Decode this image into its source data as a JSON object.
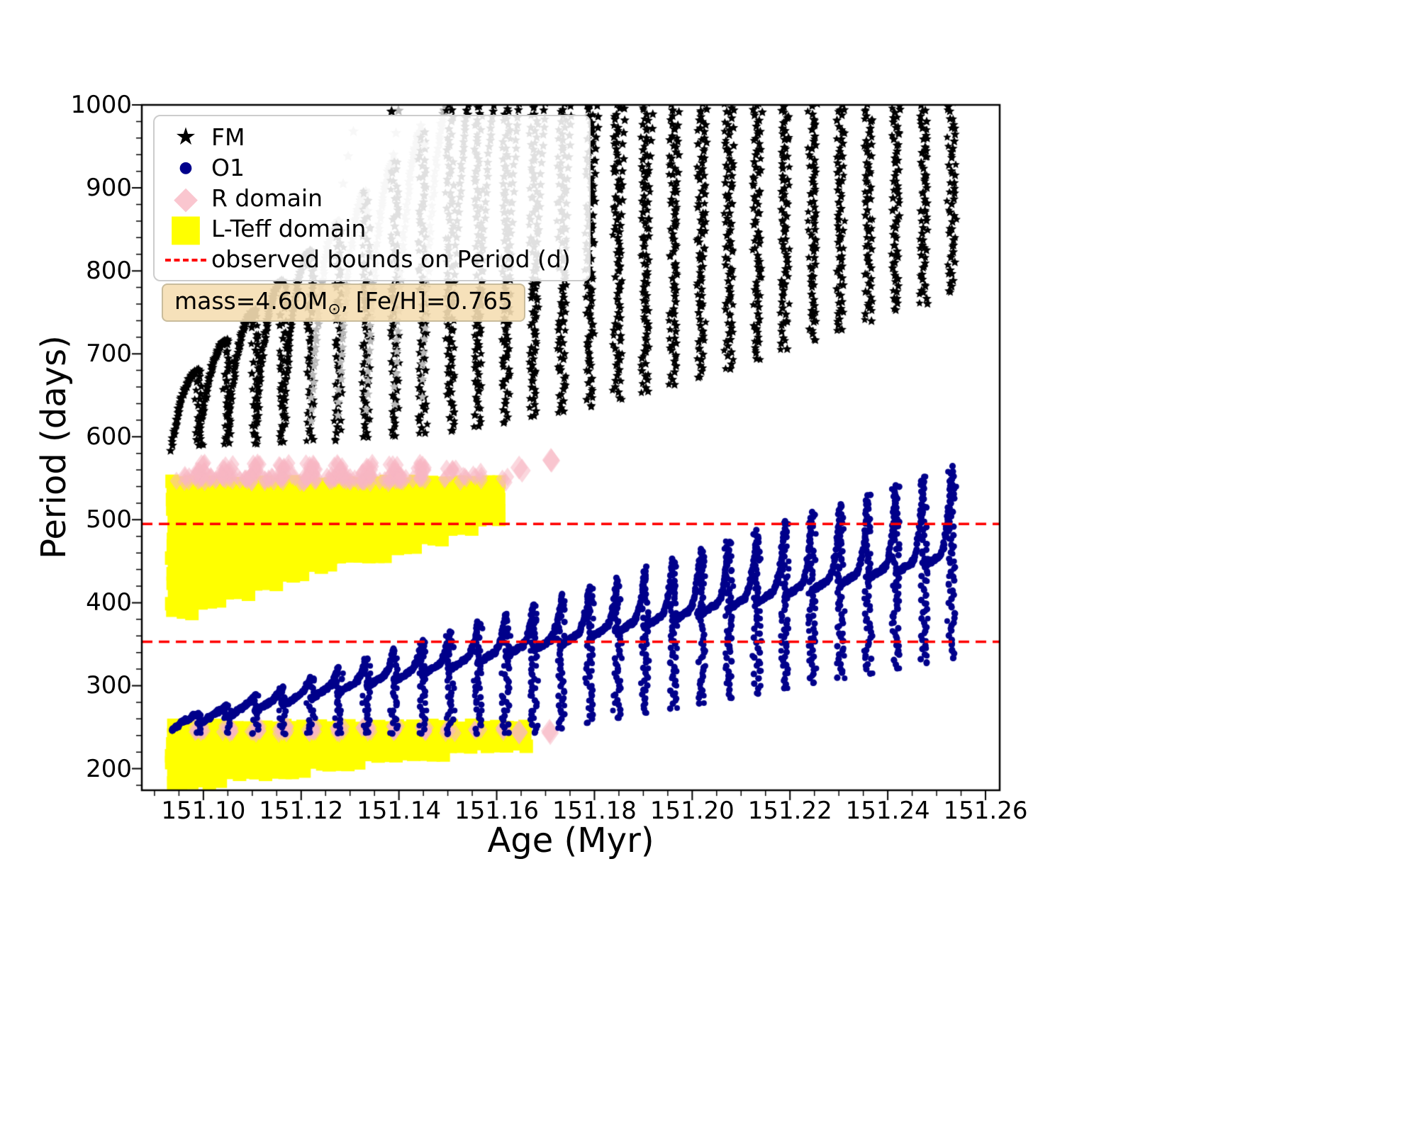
{
  "chart_data": {
    "type": "scatter",
    "title": "",
    "xlabel": "Age (Myr)",
    "ylabel": "Period (days)",
    "x_range": [
      151.0874,
      151.2629
    ],
    "y_range": [
      174,
      1000
    ],
    "x_minor_step": 0.005,
    "y_minor_step": 20,
    "x_ticks": [
      {
        "v": 151.1,
        "label": "151.10"
      },
      {
        "v": 151.12,
        "label": "151.12"
      },
      {
        "v": 151.14,
        "label": "151.14"
      },
      {
        "v": 151.16,
        "label": "151.16"
      },
      {
        "v": 151.18,
        "label": "151.18"
      },
      {
        "v": 151.2,
        "label": "151.20"
      },
      {
        "v": 151.22,
        "label": "151.22"
      },
      {
        "v": 151.24,
        "label": "151.24"
      },
      {
        "v": 151.26,
        "label": "151.26"
      }
    ],
    "y_ticks": [
      {
        "v": 200,
        "label": "200"
      },
      {
        "v": 300,
        "label": "300"
      },
      {
        "v": 400,
        "label": "400"
      },
      {
        "v": 500,
        "label": "500"
      },
      {
        "v": 600,
        "label": "600"
      },
      {
        "v": 700,
        "label": "700"
      },
      {
        "v": 800,
        "label": "800"
      },
      {
        "v": 900,
        "label": "900"
      },
      {
        "v": 1000,
        "label": "1000"
      }
    ],
    "red_lines": [
      495,
      353
    ],
    "annotation": {
      "pre": "mass=4.60M",
      "sub": "⊙",
      "post": ", [Fe/H]=0.765"
    },
    "legend": [
      {
        "icon": "star-icon",
        "glyph": "★",
        "label": "FM",
        "color": "#000000",
        "size": 34
      },
      {
        "icon": "dot-icon",
        "glyph": "●",
        "label": "O1",
        "color": "#00008b",
        "size": 22
      },
      {
        "icon": "diamond-icon",
        "glyph": "◆",
        "label": "R domain",
        "color": "#f8b7c3",
        "size": 44,
        "alpha": 0.8
      },
      {
        "icon": "square-icon",
        "glyph": "■",
        "label": "L-Teff domain",
        "color": "#ffff00",
        "size": 52
      },
      {
        "icon": "dashed-line-icon",
        "glyph": "dash",
        "label": "observed bounds on Period (d)",
        "color": "#ff0000"
      }
    ],
    "colors": {
      "fm": "#000000",
      "fm_faded": "#b9b9b9",
      "o1": "#00008b",
      "r_domain": "#f8b7c3",
      "l_teff": "#ffff00",
      "bounds": "#ff0000"
    },
    "fm_series": {
      "name": "FM",
      "marker": "star",
      "dx": 0.0057,
      "arches": [
        {
          "x0": 151.0935,
          "b": 583,
          "p": 680,
          "d": 590
        },
        {
          "x0": 151.0992,
          "b": 590,
          "p": 716,
          "d": 591
        },
        {
          "x0": 151.1049,
          "b": 597,
          "p": 752,
          "d": 591
        },
        {
          "x0": 151.1106,
          "b": 603,
          "p": 788,
          "d": 593
        },
        {
          "x0": 151.1163,
          "b": 610,
          "p": 824,
          "d": 595
        },
        {
          "x0": 151.122,
          "b": 617,
          "p": 860,
          "d": 597,
          "f": 1
        },
        {
          "x0": 151.1277,
          "b": 624,
          "p": 896,
          "d": 599,
          "f": 1
        },
        {
          "x0": 151.1334,
          "b": 631,
          "p": 932,
          "d": 601,
          "f": 1
        },
        {
          "x0": 151.1391,
          "b": 637,
          "p": 968,
          "d": 604,
          "f": 1
        },
        {
          "x0": 151.1448,
          "b": 644,
          "p": 1004,
          "d": 608,
          "f": 1
        },
        {
          "x0": 151.1505,
          "b": 651,
          "p": 1040,
          "d": 612
        },
        {
          "x0": 151.1562,
          "b": 658,
          "p": 1076,
          "d": 618
        },
        {
          "x0": 151.1619,
          "b": 665,
          "p": 1112,
          "d": 624
        },
        {
          "x0": 151.1676,
          "b": 672,
          "p": 1148,
          "d": 629
        },
        {
          "x0": 151.1733,
          "b": 678,
          "p": 1184,
          "d": 636
        },
        {
          "x0": 151.179,
          "b": 685,
          "p": 1220,
          "d": 645
        },
        {
          "x0": 151.1847,
          "b": 692,
          "p": 1256,
          "d": 653
        },
        {
          "x0": 151.1904,
          "b": 699,
          "p": 1292,
          "d": 663
        },
        {
          "x0": 151.1961,
          "b": 706,
          "p": 1328,
          "d": 672
        },
        {
          "x0": 151.2018,
          "b": 712,
          "p": 1364,
          "d": 682
        },
        {
          "x0": 151.2075,
          "b": 719,
          "p": 1400,
          "d": 693
        },
        {
          "x0": 151.2132,
          "b": 726,
          "p": 1436,
          "d": 705
        },
        {
          "x0": 151.2189,
          "b": 733,
          "p": 1472,
          "d": 717
        },
        {
          "x0": 151.2246,
          "b": 740,
          "p": 1508,
          "d": 728
        },
        {
          "x0": 151.2303,
          "b": 746,
          "p": 1544,
          "d": 741
        },
        {
          "x0": 151.236,
          "b": 753,
          "p": 1580,
          "d": 754
        },
        {
          "x0": 151.2417,
          "b": 760,
          "p": 1616,
          "d": 761
        },
        {
          "x0": 151.2474,
          "b": 767,
          "p": 1652,
          "d": 774
        }
      ]
    },
    "o1_series": {
      "name": "O1",
      "marker": "dot",
      "dx": 0.0057,
      "grad": 22,
      "arches": [
        {
          "x0": 151.0935,
          "b": 247,
          "p": 266,
          "d": 243
        },
        {
          "x0": 151.0992,
          "b": 254,
          "p": 277,
          "d": 243
        },
        {
          "x0": 151.1049,
          "b": 262,
          "p": 288,
          "d": 243
        },
        {
          "x0": 151.1106,
          "b": 269,
          "p": 299,
          "d": 243
        },
        {
          "x0": 151.1163,
          "b": 276,
          "p": 310,
          "d": 243
        },
        {
          "x0": 151.122,
          "b": 284,
          "p": 321,
          "d": 243
        },
        {
          "x0": 151.1277,
          "b": 291,
          "p": 332,
          "d": 243
        },
        {
          "x0": 151.1334,
          "b": 298,
          "p": 343,
          "d": 243
        },
        {
          "x0": 151.1391,
          "b": 305,
          "p": 354,
          "d": 243
        },
        {
          "x0": 151.1448,
          "b": 313,
          "p": 365,
          "d": 243
        },
        {
          "x0": 151.1505,
          "b": 320,
          "p": 376,
          "d": 243
        },
        {
          "x0": 151.1562,
          "b": 327,
          "p": 387,
          "d": 243
        },
        {
          "x0": 151.1619,
          "b": 335,
          "p": 398,
          "d": 243
        },
        {
          "x0": 151.1676,
          "b": 342,
          "p": 409,
          "d": 249
        },
        {
          "x0": 151.1733,
          "b": 349,
          "p": 420,
          "d": 255
        },
        {
          "x0": 151.179,
          "b": 357,
          "p": 431,
          "d": 261
        },
        {
          "x0": 151.1847,
          "b": 364,
          "p": 442,
          "d": 267
        },
        {
          "x0": 151.1904,
          "b": 371,
          "p": 453,
          "d": 273
        },
        {
          "x0": 151.1961,
          "b": 378,
          "p": 464,
          "d": 279
        },
        {
          "x0": 151.2018,
          "b": 386,
          "p": 475,
          "d": 285
        },
        {
          "x0": 151.2075,
          "b": 393,
          "p": 486,
          "d": 291
        },
        {
          "x0": 151.2132,
          "b": 400,
          "p": 497,
          "d": 297
        },
        {
          "x0": 151.2189,
          "b": 407,
          "p": 508,
          "d": 303
        },
        {
          "x0": 151.2246,
          "b": 415,
          "p": 519,
          "d": 309
        },
        {
          "x0": 151.2303,
          "b": 422,
          "p": 530,
          "d": 315
        },
        {
          "x0": 151.236,
          "b": 429,
          "p": 541,
          "d": 321
        },
        {
          "x0": 151.2417,
          "b": 436,
          "p": 552,
          "d": 327
        },
        {
          "x0": 151.2474,
          "b": 444,
          "p": 563,
          "d": 333
        }
      ]
    },
    "l_teff_domain": {
      "name": "L-Teff domain",
      "rects": [
        {
          "x0": 151.0937,
          "x1": 151.0986,
          "y0": 387,
          "y1": 545
        },
        {
          "x0": 151.0994,
          "x1": 151.1043,
          "y0": 397,
          "y1": 545
        },
        {
          "x0": 151.1051,
          "x1": 151.11,
          "y0": 407,
          "y1": 545
        },
        {
          "x0": 151.1108,
          "x1": 151.1157,
          "y0": 417,
          "y1": 545
        },
        {
          "x0": 151.1165,
          "x1": 151.1214,
          "y0": 426,
          "y1": 545
        },
        {
          "x0": 151.1222,
          "x1": 151.1271,
          "y0": 436,
          "y1": 545
        },
        {
          "x0": 151.1279,
          "x1": 151.1328,
          "y0": 446,
          "y1": 545
        },
        {
          "x0": 151.1336,
          "x1": 151.1385,
          "y0": 456,
          "y1": 545
        },
        {
          "x0": 151.1393,
          "x1": 151.1442,
          "y0": 465,
          "y1": 545
        },
        {
          "x0": 151.145,
          "x1": 151.1499,
          "y0": 475,
          "y1": 545
        },
        {
          "x0": 151.1507,
          "x1": 151.1556,
          "y0": 485,
          "y1": 545
        },
        {
          "x0": 151.1564,
          "x1": 151.1613,
          "y0": 495,
          "y1": 545
        },
        {
          "x0": 151.0937,
          "x1": 151.0986,
          "y0": 180,
          "y1": 251
        },
        {
          "x0": 151.0994,
          "x1": 151.1043,
          "y0": 184,
          "y1": 251
        },
        {
          "x0": 151.1051,
          "x1": 151.11,
          "y0": 188,
          "y1": 251
        },
        {
          "x0": 151.1108,
          "x1": 151.1157,
          "y0": 191,
          "y1": 251
        },
        {
          "x0": 151.1165,
          "x1": 151.1214,
          "y0": 195,
          "y1": 251
        },
        {
          "x0": 151.1222,
          "x1": 151.1271,
          "y0": 199,
          "y1": 251
        },
        {
          "x0": 151.1279,
          "x1": 151.1328,
          "y0": 203,
          "y1": 251
        },
        {
          "x0": 151.1336,
          "x1": 151.1385,
          "y0": 207,
          "y1": 251
        },
        {
          "x0": 151.1393,
          "x1": 151.1442,
          "y0": 211,
          "y1": 251
        },
        {
          "x0": 151.145,
          "x1": 151.1499,
          "y0": 214,
          "y1": 251
        },
        {
          "x0": 151.1507,
          "x1": 151.1556,
          "y0": 218,
          "y1": 251
        },
        {
          "x0": 151.1564,
          "x1": 151.1613,
          "y0": 222,
          "y1": 251
        },
        {
          "x0": 151.1621,
          "x1": 151.167,
          "y0": 226,
          "y1": 251
        }
      ]
    },
    "r_domain": {
      "name": "R domain",
      "clusters": [
        {
          "x": 151.0992,
          "y": 557,
          "n": 16,
          "sx": 0.0012,
          "sy": 12
        },
        {
          "x": 151.1049,
          "y": 557,
          "n": 16,
          "sx": 0.0012,
          "sy": 12
        },
        {
          "x": 151.1106,
          "y": 557,
          "n": 16,
          "sx": 0.0012,
          "sy": 12
        },
        {
          "x": 151.1163,
          "y": 557,
          "n": 16,
          "sx": 0.0012,
          "sy": 12
        },
        {
          "x": 151.122,
          "y": 557,
          "n": 16,
          "sx": 0.0012,
          "sy": 12
        },
        {
          "x": 151.1277,
          "y": 557,
          "n": 16,
          "sx": 0.0012,
          "sy": 12
        },
        {
          "x": 151.1334,
          "y": 557,
          "n": 16,
          "sx": 0.0012,
          "sy": 12
        },
        {
          "x": 151.1391,
          "y": 558,
          "n": 14,
          "sx": 0.0012,
          "sy": 12
        },
        {
          "x": 151.1448,
          "y": 558,
          "n": 14,
          "sx": 0.0012,
          "sy": 12
        },
        {
          "x": 151.0964,
          "y": 549,
          "n": 8,
          "sx": 0.0022,
          "sy": 5
        },
        {
          "x": 151.1021,
          "y": 549,
          "n": 8,
          "sx": 0.0022,
          "sy": 5
        },
        {
          "x": 151.1078,
          "y": 549,
          "n": 8,
          "sx": 0.0022,
          "sy": 5
        },
        {
          "x": 151.1135,
          "y": 549,
          "n": 8,
          "sx": 0.0022,
          "sy": 5
        },
        {
          "x": 151.1192,
          "y": 549,
          "n": 8,
          "sx": 0.0022,
          "sy": 5
        },
        {
          "x": 151.1249,
          "y": 549,
          "n": 8,
          "sx": 0.0022,
          "sy": 5
        },
        {
          "x": 151.1306,
          "y": 549,
          "n": 8,
          "sx": 0.0022,
          "sy": 5
        },
        {
          "x": 151.1363,
          "y": 549,
          "n": 8,
          "sx": 0.0022,
          "sy": 5
        },
        {
          "x": 151.142,
          "y": 549,
          "n": 8,
          "sx": 0.0022,
          "sy": 5
        },
        {
          "x": 151.1505,
          "y": 554,
          "n": 8,
          "sx": 0.0012,
          "sy": 9
        },
        {
          "x": 151.1533,
          "y": 548,
          "n": 4,
          "sx": 0.0012,
          "sy": 5
        },
        {
          "x": 151.1562,
          "y": 551,
          "n": 5,
          "sx": 0.001,
          "sy": 7
        },
        {
          "x": 151.1619,
          "y": 549,
          "n": 3,
          "sx": 0.0008,
          "sy": 5
        },
        {
          "x": 151.1648,
          "y": 558,
          "n": 2,
          "sx": 0.0004,
          "sy": 5,
          "s": 17
        },
        {
          "x": 151.1712,
          "y": 570,
          "n": 2,
          "sx": 0.0004,
          "sy": 4,
          "s": 17
        },
        {
          "x": 151.0992,
          "y": 247,
          "n": 10,
          "sx": 0.001,
          "sy": 5
        },
        {
          "x": 151.1049,
          "y": 247,
          "n": 10,
          "sx": 0.001,
          "sy": 5
        },
        {
          "x": 151.1106,
          "y": 247,
          "n": 10,
          "sx": 0.001,
          "sy": 5
        },
        {
          "x": 151.1163,
          "y": 247,
          "n": 10,
          "sx": 0.001,
          "sy": 5
        },
        {
          "x": 151.122,
          "y": 247,
          "n": 10,
          "sx": 0.001,
          "sy": 5
        },
        {
          "x": 151.1277,
          "y": 247,
          "n": 10,
          "sx": 0.001,
          "sy": 5
        },
        {
          "x": 151.1334,
          "y": 247,
          "n": 10,
          "sx": 0.001,
          "sy": 5
        },
        {
          "x": 151.1391,
          "y": 247,
          "n": 10,
          "sx": 0.001,
          "sy": 5
        },
        {
          "x": 151.1448,
          "y": 247,
          "n": 10,
          "sx": 0.001,
          "sy": 5
        },
        {
          "x": 151.1505,
          "y": 246,
          "n": 5,
          "sx": 0.001,
          "sy": 4
        },
        {
          "x": 151.1562,
          "y": 245,
          "n": 4,
          "sx": 0.0009,
          "sy": 4
        },
        {
          "x": 151.1619,
          "y": 246,
          "n": 3,
          "sx": 0.0007,
          "sy": 4,
          "s": 15
        },
        {
          "x": 151.1648,
          "y": 243,
          "n": 2,
          "sx": 0.0004,
          "sy": 3,
          "s": 17
        },
        {
          "x": 151.1712,
          "y": 246,
          "n": 2,
          "sx": 0.0004,
          "sy": 3,
          "s": 17
        }
      ]
    },
    "scatter_extra": {
      "faded_stars": [
        {
          "x": 151.1286,
          "y": 905
        },
        {
          "x": 151.1296,
          "y": 938
        },
        {
          "x": 151.1307,
          "y": 968
        },
        {
          "x": 151.1335,
          "y": 872
        },
        {
          "x": 151.1389,
          "y": 940
        },
        {
          "x": 151.1394,
          "y": 966
        },
        {
          "x": 151.1399,
          "y": 993
        },
        {
          "x": 151.1445,
          "y": 975
        },
        {
          "x": 151.1452,
          "y": 952
        }
      ],
      "black_stars": [
        {
          "x": 151.1385,
          "y": 992
        }
      ]
    }
  }
}
